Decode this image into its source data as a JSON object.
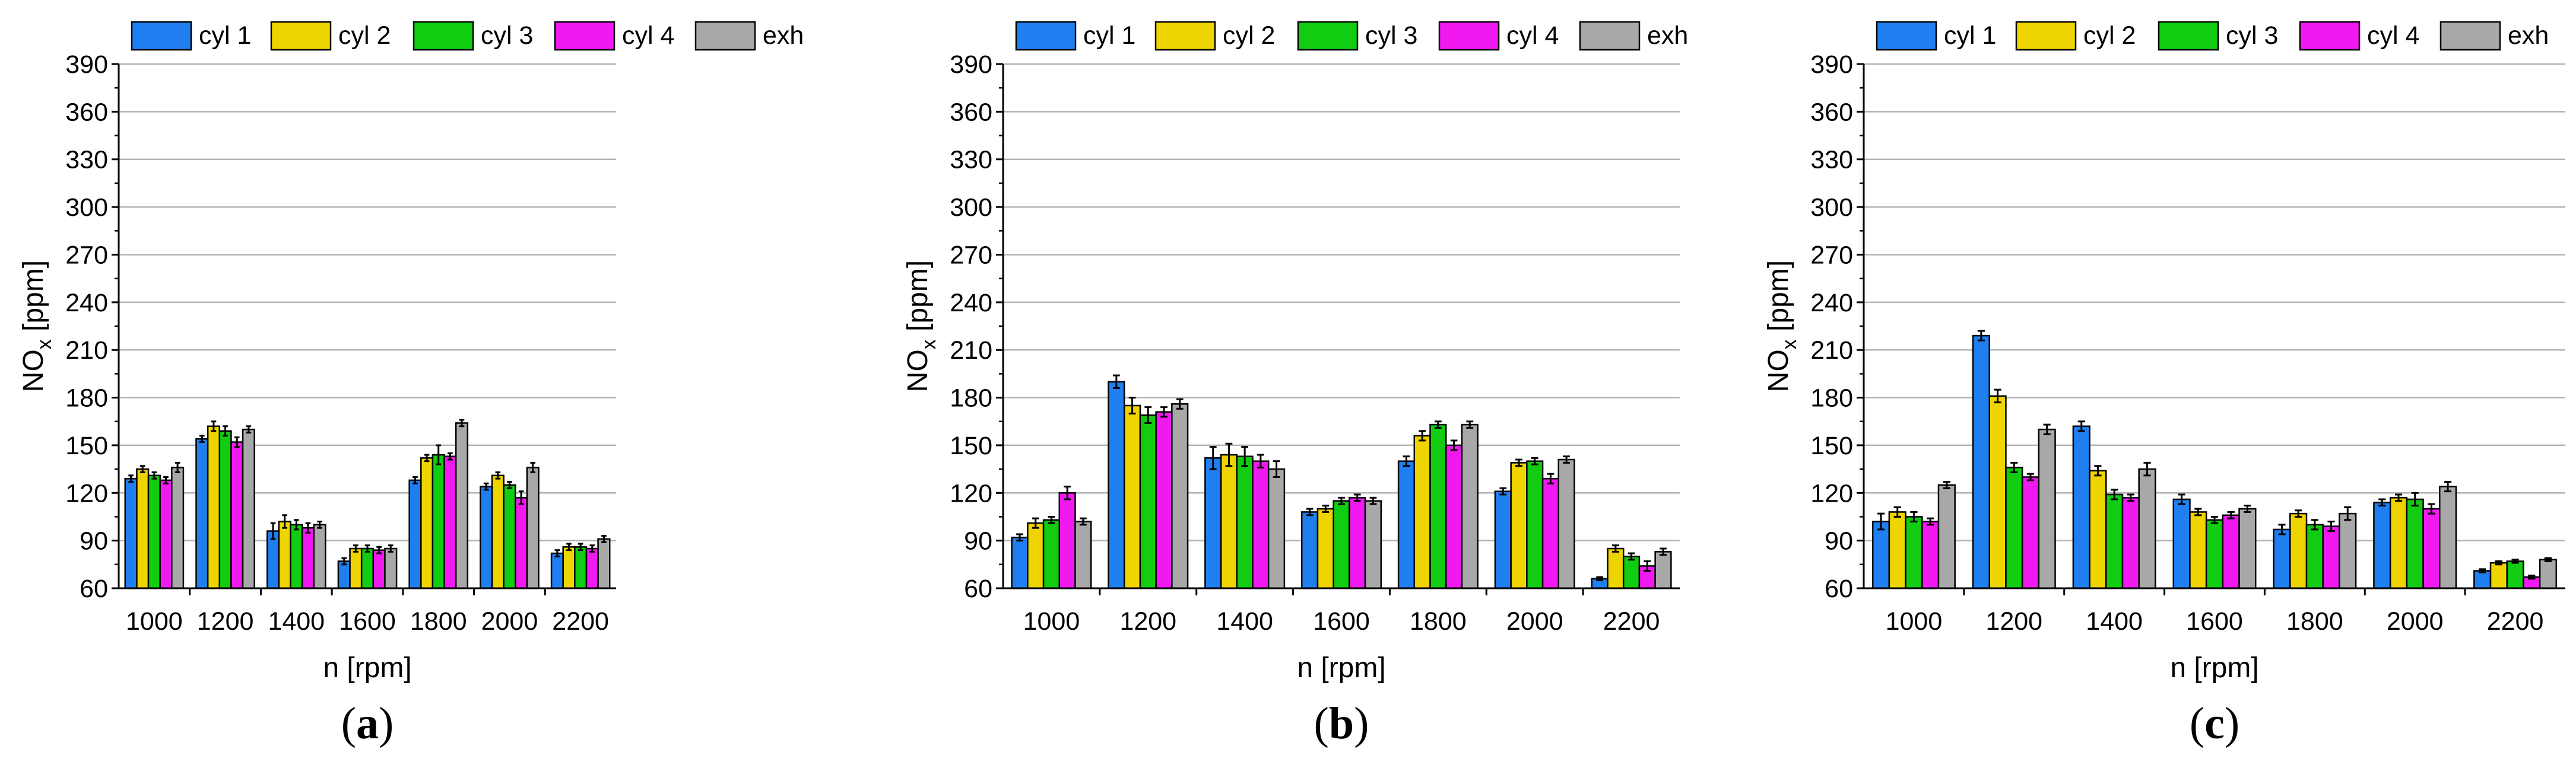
{
  "colors": {
    "cyl 1": "#1f7ff0",
    "cyl 2": "#eed400",
    "cyl 3": "#11cc11",
    "cyl 4": "#f019f0",
    "exh": "#a8a8a8",
    "grid": "#b3b3b3"
  },
  "chart_data": [
    {
      "type": "bar",
      "panel_label": "a",
      "categories": [
        "1000",
        "1200",
        "1400",
        "1600",
        "1800",
        "2000",
        "2200"
      ],
      "xlabel": "n [rpm]",
      "ylabel_main": "NO",
      "ylabel_sub": "x",
      "ylabel_unit": " [ppm]",
      "ylim": [
        60,
        390
      ],
      "yticks": [
        60,
        90,
        120,
        150,
        180,
        210,
        240,
        270,
        300,
        330,
        360,
        390
      ],
      "grid": true,
      "legend": "top",
      "series": [
        {
          "name": "cyl 1",
          "values": [
            129,
            154,
            96,
            77,
            128,
            124,
            82
          ],
          "errors": [
            2,
            2,
            5,
            2,
            2,
            2,
            2
          ]
        },
        {
          "name": "cyl 2",
          "values": [
            135,
            162,
            102,
            85,
            142,
            131,
            86
          ],
          "errors": [
            2,
            3,
            4,
            2,
            2,
            2,
            2
          ]
        },
        {
          "name": "cyl 3",
          "values": [
            131,
            159,
            100,
            85,
            144,
            125,
            86
          ],
          "errors": [
            2,
            3,
            3,
            2,
            6,
            2,
            2
          ]
        },
        {
          "name": "cyl 4",
          "values": [
            128,
            152,
            98,
            84,
            143,
            117,
            85
          ],
          "errors": [
            2,
            3,
            3,
            2,
            2,
            4,
            2
          ]
        },
        {
          "name": "exh",
          "values": [
            136,
            160,
            100,
            85,
            164,
            136,
            91
          ],
          "errors": [
            3,
            2,
            2,
            2,
            2,
            3,
            2
          ]
        }
      ]
    },
    {
      "type": "bar",
      "panel_label": "b",
      "categories": [
        "1000",
        "1200",
        "1400",
        "1600",
        "1800",
        "2000",
        "2200"
      ],
      "xlabel": "n [rpm]",
      "ylabel_main": "NO",
      "ylabel_sub": "x",
      "ylabel_unit": " [ppm]",
      "ylim": [
        60,
        390
      ],
      "yticks": [
        60,
        90,
        120,
        150,
        180,
        210,
        240,
        270,
        300,
        330,
        360,
        390
      ],
      "grid": true,
      "legend": "top",
      "series": [
        {
          "name": "cyl 1",
          "values": [
            92,
            190,
            142,
            108,
            140,
            121,
            66
          ],
          "errors": [
            2,
            4,
            7,
            2,
            3,
            2,
            1
          ]
        },
        {
          "name": "cyl 2",
          "values": [
            101,
            175,
            144,
            110,
            156,
            139,
            85
          ],
          "errors": [
            3,
            5,
            7,
            2,
            3,
            2,
            2
          ]
        },
        {
          "name": "cyl 3",
          "values": [
            103,
            169,
            143,
            115,
            163,
            140,
            80
          ],
          "errors": [
            2,
            5,
            6,
            2,
            2,
            2,
            2
          ]
        },
        {
          "name": "cyl 4",
          "values": [
            120,
            171,
            140,
            117,
            150,
            129,
            74
          ],
          "errors": [
            4,
            3,
            4,
            2,
            3,
            3,
            3
          ]
        },
        {
          "name": "exh",
          "values": [
            102,
            176,
            135,
            115,
            163,
            141,
            83
          ],
          "errors": [
            2,
            3,
            5,
            2,
            2,
            2,
            2
          ]
        }
      ]
    },
    {
      "type": "bar",
      "panel_label": "c",
      "categories": [
        "1000",
        "1200",
        "1400",
        "1600",
        "1800",
        "2000",
        "2200"
      ],
      "xlabel": "n [rpm]",
      "ylabel_main": "NO",
      "ylabel_sub": "x",
      "ylabel_unit": " [ppm]",
      "ylim": [
        60,
        390
      ],
      "yticks": [
        60,
        90,
        120,
        150,
        180,
        210,
        240,
        270,
        300,
        330,
        360,
        390
      ],
      "grid": true,
      "legend": "top",
      "series": [
        {
          "name": "cyl 1",
          "values": [
            102,
            219,
            162,
            116,
            97,
            114,
            71
          ],
          "errors": [
            5,
            3,
            3,
            3,
            3,
            2,
            1
          ]
        },
        {
          "name": "cyl 2",
          "values": [
            108,
            181,
            134,
            108,
            107,
            117,
            76
          ],
          "errors": [
            3,
            4,
            3,
            2,
            2,
            2,
            1
          ]
        },
        {
          "name": "cyl 3",
          "values": [
            105,
            136,
            119,
            103,
            100,
            116,
            77
          ],
          "errors": [
            3,
            3,
            3,
            2,
            3,
            4,
            1
          ]
        },
        {
          "name": "cyl 4",
          "values": [
            102,
            130,
            117,
            106,
            99,
            110,
            67
          ],
          "errors": [
            2,
            2,
            2,
            2,
            3,
            3,
            1
          ]
        },
        {
          "name": "exh",
          "values": [
            125,
            160,
            135,
            110,
            107,
            124,
            78
          ],
          "errors": [
            2,
            3,
            4,
            2,
            4,
            3,
            1
          ]
        }
      ]
    }
  ]
}
